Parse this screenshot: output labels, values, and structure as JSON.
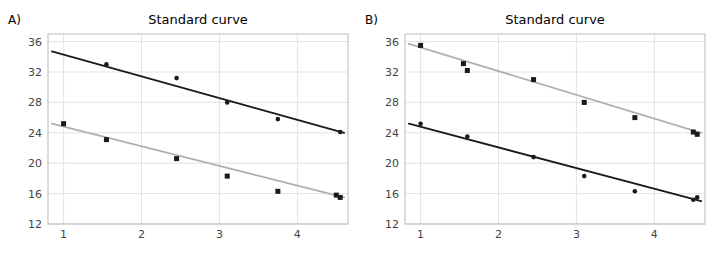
{
  "chart_data": [
    {
      "type": "scatter",
      "title": "Standard curve",
      "annotations": [
        "A)"
      ],
      "xlim": [
        0.8,
        4.65
      ],
      "ylim": [
        12,
        37
      ],
      "xticks": [
        1,
        2,
        3,
        4
      ],
      "yticks": [
        12,
        16,
        20,
        24,
        28,
        32,
        36
      ],
      "grid": true,
      "series": [
        {
          "type": "line",
          "color": "#1a1a1a",
          "x": [
            0.85,
            4.6
          ],
          "values": [
            34.7,
            24.0
          ]
        },
        {
          "type": "line",
          "color": "#b0b0b0",
          "x": [
            0.85,
            4.6
          ],
          "values": [
            25.2,
            15.5
          ]
        },
        {
          "type": "scatter",
          "marker": "circle",
          "color": "#1a1a1a",
          "x": [
            1.55,
            2.45,
            3.1,
            3.75,
            4.55
          ],
          "values": [
            33.0,
            31.2,
            28.0,
            25.8,
            24.1
          ]
        },
        {
          "type": "scatter",
          "marker": "square",
          "color": "#1a1a1a",
          "x": [
            1.0,
            1.55,
            2.45,
            3.1,
            3.75,
            4.5,
            4.55
          ],
          "values": [
            25.2,
            23.1,
            20.6,
            18.3,
            16.3,
            15.8,
            15.5
          ]
        }
      ]
    },
    {
      "type": "scatter",
      "title": "Standard curve",
      "annotations": [
        "B)"
      ],
      "xlim": [
        0.8,
        4.65
      ],
      "ylim": [
        12,
        37
      ],
      "xticks": [
        1,
        2,
        3,
        4
      ],
      "yticks": [
        12,
        16,
        20,
        24,
        28,
        32,
        36
      ],
      "grid": true,
      "series": [
        {
          "type": "line",
          "color": "#1a1a1a",
          "x": [
            0.85,
            4.6
          ],
          "values": [
            25.2,
            15.0
          ]
        },
        {
          "type": "line",
          "color": "#b0b0b0",
          "x": [
            0.85,
            4.6
          ],
          "values": [
            35.7,
            24.0
          ]
        },
        {
          "type": "scatter",
          "marker": "circle",
          "color": "#1a1a1a",
          "x": [
            1.0,
            1.6,
            2.45,
            3.1,
            3.75,
            4.5,
            4.55
          ],
          "values": [
            25.2,
            23.5,
            20.8,
            18.3,
            16.3,
            15.2,
            15.5
          ]
        },
        {
          "type": "scatter",
          "marker": "square",
          "color": "#1a1a1a",
          "x": [
            1.0,
            1.55,
            1.6,
            2.45,
            3.1,
            3.75,
            4.5,
            4.55
          ],
          "values": [
            35.5,
            33.1,
            32.2,
            31.0,
            28.0,
            26.0,
            24.1,
            23.8
          ]
        }
      ]
    }
  ]
}
